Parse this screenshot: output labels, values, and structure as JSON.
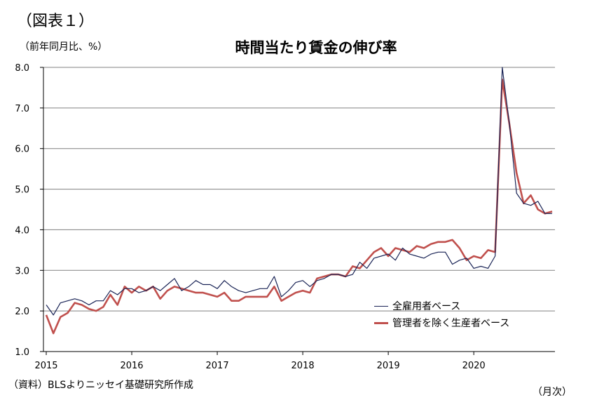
{
  "figure_label": "（図表１）",
  "unit_label": "（前年同月比、%）",
  "source": "（資料）BLSよりニッセイ基礎研究所作成",
  "freq": "（月次）",
  "colors": {
    "series1": "#1a2456",
    "series2": "#c0504d",
    "grid": "#808080"
  },
  "chart_data": {
    "type": "line",
    "title": "時間当たり賃金の伸び率",
    "ylim": [
      1.0,
      8.0
    ],
    "yticks": [
      "1.0",
      "2.0",
      "3.0",
      "4.0",
      "5.0",
      "6.0",
      "7.0",
      "8.0"
    ],
    "xtick_labels": [
      "2015",
      "2016",
      "2017",
      "2018",
      "2019",
      "2020"
    ],
    "x_start": "2015-01",
    "x_end": "2020-12",
    "grid": true,
    "legend_position": "bottom-right",
    "series": [
      {
        "name": "全雇用者ベース",
        "values": [
          2.15,
          1.9,
          2.2,
          2.25,
          2.3,
          2.25,
          2.15,
          2.25,
          2.25,
          2.5,
          2.4,
          2.55,
          2.55,
          2.45,
          2.5,
          2.6,
          2.5,
          2.65,
          2.8,
          2.5,
          2.6,
          2.75,
          2.65,
          2.65,
          2.55,
          2.75,
          2.6,
          2.5,
          2.45,
          2.5,
          2.55,
          2.55,
          2.85,
          2.35,
          2.5,
          2.7,
          2.75,
          2.6,
          2.75,
          2.8,
          2.9,
          2.9,
          2.85,
          2.9,
          3.2,
          3.05,
          3.3,
          3.35,
          3.4,
          3.25,
          3.55,
          3.4,
          3.35,
          3.3,
          3.4,
          3.45,
          3.45,
          3.15,
          3.25,
          3.3,
          3.05,
          3.1,
          3.05,
          3.35,
          8.0,
          6.6,
          4.9,
          4.65,
          4.6,
          4.7,
          4.4,
          4.4
        ]
      },
      {
        "name": "管理者を除く生産者ベース",
        "values": [
          1.9,
          1.45,
          1.85,
          1.95,
          2.2,
          2.15,
          2.05,
          2.0,
          2.1,
          2.4,
          2.15,
          2.6,
          2.45,
          2.6,
          2.5,
          2.6,
          2.3,
          2.5,
          2.6,
          2.55,
          2.5,
          2.45,
          2.45,
          2.4,
          2.35,
          2.45,
          2.25,
          2.25,
          2.35,
          2.35,
          2.35,
          2.35,
          2.6,
          2.25,
          2.35,
          2.45,
          2.5,
          2.45,
          2.8,
          2.85,
          2.9,
          2.9,
          2.85,
          3.1,
          3.05,
          3.25,
          3.45,
          3.55,
          3.35,
          3.55,
          3.5,
          3.45,
          3.6,
          3.55,
          3.65,
          3.7,
          3.7,
          3.75,
          3.55,
          3.25,
          3.35,
          3.3,
          3.5,
          3.45,
          7.7,
          6.6,
          5.4,
          4.65,
          4.85,
          4.5,
          4.4,
          4.45
        ]
      }
    ]
  }
}
